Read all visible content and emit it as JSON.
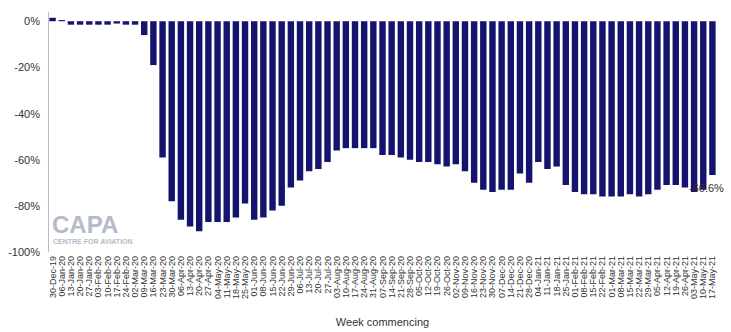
{
  "chart_data": {
    "type": "bar",
    "x_label": "Week commencing",
    "categories": [
      "30-Dec-19",
      "06-Jan-20",
      "13-Jan-20",
      "20-Jan-20",
      "27-Jan-20",
      "03-Feb-20",
      "10-Feb-20",
      "17-Feb-20",
      "24-Feb-20",
      "02-Mar-20",
      "09-Mar-20",
      "16-Mar-20",
      "23-Mar-20",
      "30-Mar-20",
      "06-Apr-20",
      "13-Apr-20",
      "20-Apr-20",
      "27-Apr-20",
      "04-May-20",
      "11-May-20",
      "18-May-20",
      "25-May-20",
      "01-Jun-20",
      "08-Jun-20",
      "15-Jun-20",
      "22-Jun-20",
      "29-Jun-20",
      "06-Jul-20",
      "13-Jul-20",
      "20-Jul-20",
      "27-Jul-20",
      "03-Aug-20",
      "10-Aug-20",
      "17-Aug-20",
      "24-Aug-20",
      "31-Aug-20",
      "07-Sep-20",
      "14-Sep-20",
      "21-Sep-20",
      "28-Sep-20",
      "05-Oct-20",
      "12-Oct-20",
      "19-Oct-20",
      "26-Oct-20",
      "02-Nov-20",
      "09-Nov-20",
      "16-Nov-20",
      "23-Nov-20",
      "30-Nov-20",
      "07-Dec-20",
      "14-Dec-20",
      "21-Dec-20",
      "28-Dec-20",
      "04-Jan-21",
      "11-Jan-21",
      "18-Jan-21",
      "25-Jan-21",
      "01-Feb-21",
      "08-Feb-21",
      "15-Feb-21",
      "22-Feb-21",
      "01-Mar-21",
      "08-Mar-21",
      "15-Mar-21",
      "22-Mar-21",
      "29-Mar-21",
      "05-Apr-21",
      "12-Apr-21",
      "19-Apr-21",
      "26-Apr-21",
      "03-May-21",
      "10-May-21",
      "17-May-21"
    ],
    "values": [
      1.5,
      0.5,
      -1.5,
      -1.5,
      -1.5,
      -1.5,
      -1.5,
      -1,
      -1.5,
      -1.5,
      -6,
      -19,
      -59,
      -78,
      -86,
      -89,
      -91,
      -87,
      -87,
      -87,
      -85,
      -79,
      -86,
      -85,
      -82,
      -80,
      -72,
      -69,
      -65,
      -64,
      -61,
      -56,
      -55,
      -55,
      -55,
      -55,
      -58,
      -58,
      -59,
      -60,
      -61,
      -61,
      -62,
      -63,
      -62,
      -65,
      -70,
      -73,
      -74,
      -73,
      -73,
      -66,
      -70,
      -61,
      -64,
      -63,
      -71,
      -74,
      -75,
      -75,
      -76,
      -76,
      -76,
      -75,
      -76,
      -75,
      -73,
      -71,
      -71,
      -72,
      -74,
      -73,
      -66.6
    ],
    "color": "#14146e",
    "ylim": [
      -100,
      4
    ],
    "yticks": [
      {
        "value": -100,
        "label": "-100%"
      },
      {
        "value": -80,
        "label": "-80%"
      },
      {
        "value": -60,
        "label": "-60%"
      },
      {
        "value": -40,
        "label": "-40%"
      },
      {
        "value": -20,
        "label": "-20%"
      },
      {
        "value": 0,
        "label": "0%"
      }
    ],
    "grid": false,
    "annotations": [
      {
        "text": "-66.6%",
        "x": "17-May-21",
        "y": -66.6
      },
      {
        "text": "CAPA"
      },
      {
        "text": "CENTRE FOR AVIATION"
      }
    ]
  }
}
